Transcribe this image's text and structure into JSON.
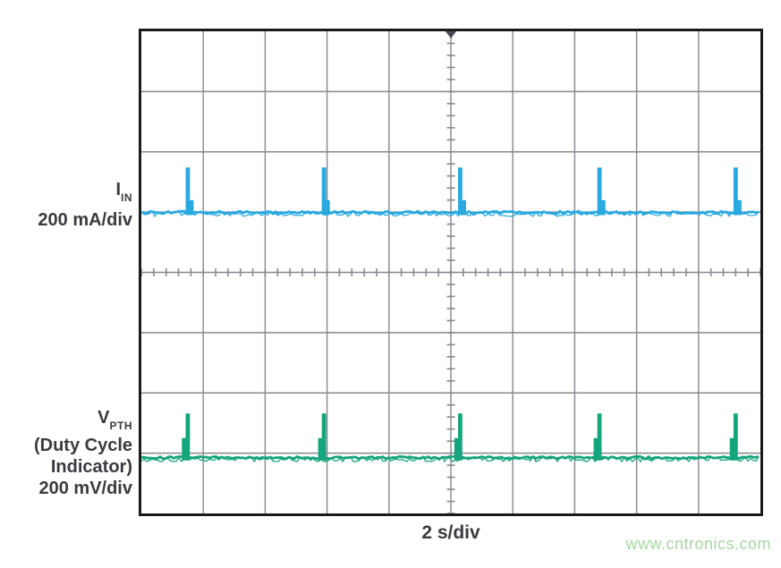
{
  "watermark": {
    "text": "www.cntronics.com",
    "color": "#a6d7a0"
  },
  "labels": {
    "ch1_symbol_main": "I",
    "ch1_symbol_sub": "IN",
    "ch1_scale": "200 mA/div",
    "ch2_symbol_main": "V",
    "ch2_symbol_sub": "PTH",
    "ch2_line2": "(Duty Cycle",
    "ch2_line3": "Indicator)",
    "ch2_scale": "200 mV/div",
    "x_axis": "2 s/div"
  },
  "chart_data": {
    "type": "line",
    "subtype": "oscilloscope-graticule",
    "title": "",
    "x_axis": {
      "label": "2 s/div",
      "seconds_per_div": 2,
      "divisions": 10,
      "total_seconds": 20
    },
    "y_axis": {
      "divisions": 8
    },
    "grid": {
      "color": "#87878f",
      "border_color": "#1b1b1b",
      "minor_ticks_per_div": 5,
      "center_cross_ticks": true,
      "trigger_marker": "top-center-down-triangle",
      "trigger_marker_color": "#4a4a52"
    },
    "series": [
      {
        "name": "IIN",
        "scale_label": "200 mA/div",
        "units_per_div": 200,
        "unit": "mA",
        "color": "#2aa9e0",
        "baseline_div_from_top": 3.02,
        "baseline_value": 0,
        "spike_times_s": [
          1.5,
          5.9,
          10.3,
          14.8,
          19.2
        ],
        "spike_period_s": 4.4,
        "spike_peak_divs": 0.76,
        "spike_peak_approx": "150 mA",
        "shoulder_divs": 0.22,
        "shoulder_side": "right",
        "spike_width_s": 0.14,
        "shoulder_width_s": 0.12,
        "noise_band_divs": 0.07,
        "seed": 7
      },
      {
        "name": "VPTH (Duty Cycle Indicator)",
        "scale_label": "200 mV/div",
        "units_per_div": 200,
        "unit": "mV",
        "color": "#14a57c",
        "baseline_div_from_top": 7.09,
        "baseline_value": 0,
        "spike_times_s": [
          1.5,
          5.9,
          10.3,
          14.8,
          19.2
        ],
        "spike_period_s": 4.4,
        "spike_peak_divs": 0.75,
        "spike_peak_approx": "150 mV",
        "shoulder_divs": 0.34,
        "shoulder_side": "left",
        "spike_width_s": 0.14,
        "shoulder_width_s": 0.12,
        "noise_band_divs": 0.07,
        "seed": 13
      }
    ]
  }
}
